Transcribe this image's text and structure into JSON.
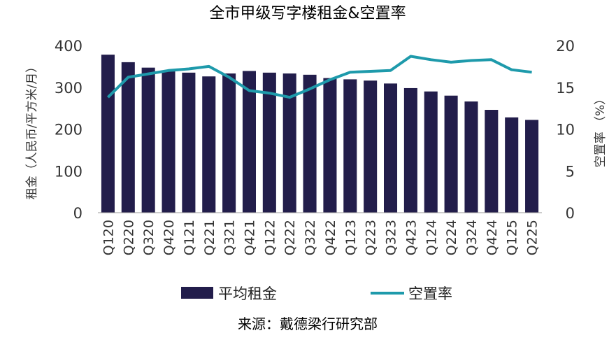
{
  "chart_data": {
    "type": "bar",
    "title": "全市甲级写字楼租金&空置率",
    "ylabel_left": "租金（人民币/平方米/月）",
    "ylabel_right": "空置率 （%）",
    "ylim_left": [
      0,
      400
    ],
    "yticks_left": [
      "0",
      "100",
      "200",
      "300",
      "400"
    ],
    "ylim_right": [
      0,
      20
    ],
    "yticks_right": [
      "0",
      "5",
      "10",
      "15",
      "20"
    ],
    "categories": [
      "Q120",
      "Q220",
      "Q320",
      "Q420",
      "Q121",
      "Q221",
      "Q321",
      "Q421",
      "Q122",
      "Q222",
      "Q322",
      "Q422",
      "Q123",
      "Q223",
      "Q323",
      "Q423",
      "Q124",
      "Q224",
      "Q324",
      "Q424",
      "Q125",
      "Q225"
    ],
    "series": [
      {
        "name": "平均租金",
        "type": "bar",
        "axis": "left",
        "color": "#221d4b",
        "values": [
          378,
          360,
          347,
          338,
          335,
          326,
          333,
          339,
          335,
          333,
          330,
          322,
          319,
          316,
          309,
          298,
          290,
          280,
          266,
          246,
          228,
          222
        ]
      },
      {
        "name": "空置率",
        "type": "line",
        "axis": "right",
        "color": "#1e9aab",
        "values": [
          13.8,
          16.2,
          16.6,
          17.0,
          17.2,
          17.5,
          16.2,
          14.6,
          14.3,
          13.8,
          14.8,
          15.9,
          16.8,
          16.9,
          17.0,
          18.7,
          18.3,
          18.0,
          18.2,
          18.3,
          17.1,
          16.8
        ]
      }
    ],
    "legend_position": "bottom",
    "grid": false
  },
  "source_text": "来源：戴德梁行研究部"
}
